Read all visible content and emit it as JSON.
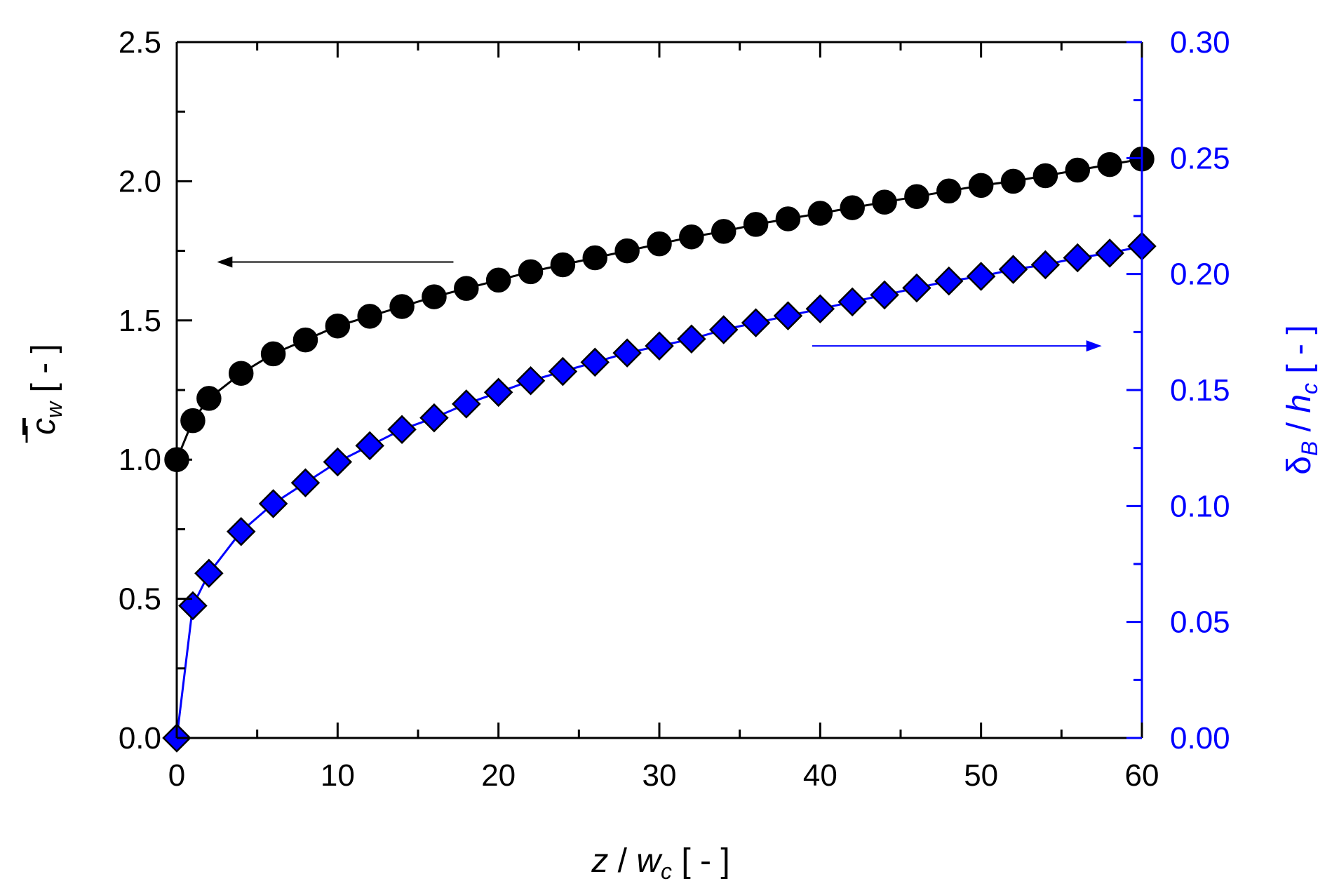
{
  "chart_data": {
    "type": "scatter",
    "title": "",
    "xlabel": "z / w_c [ - ]",
    "xlabel_parts": {
      "main": "z",
      "slash": " / ",
      "var": "w",
      "sub": "c",
      "unit": " [ - ]"
    },
    "ylabel_left": "c̄_w [ - ]",
    "ylabel_left_parts": {
      "var": "c",
      "sub": "w",
      "unit": " [ - ]"
    },
    "ylabel_right": "δ_B / h_c [ - ]",
    "ylabel_right_parts": {
      "var1": "δ",
      "sub1": "B",
      "slash": " / ",
      "var2": "h",
      "sub2": "c",
      "unit": " [ - ]"
    },
    "xlim": [
      0,
      60
    ],
    "ylim_left": [
      0,
      2.5
    ],
    "ylim_right": [
      0,
      0.3
    ],
    "x_ticks": [
      "0",
      "10",
      "20",
      "30",
      "40",
      "50",
      "60"
    ],
    "y_left_ticks": [
      "0.0",
      "0.5",
      "1.0",
      "1.5",
      "2.0",
      "2.5"
    ],
    "y_right_ticks": [
      "0.00",
      "0.05",
      "0.10",
      "0.15",
      "0.20",
      "0.25",
      "0.30"
    ],
    "grid": false,
    "colors": {
      "left_axis": "#000000",
      "right_axis": "#0000ff",
      "series_left": "#000000",
      "series_right": "#0000ff"
    },
    "series": [
      {
        "name": "c_w",
        "axis": "left",
        "marker": "circle",
        "color": "#000000",
        "x": [
          0,
          1,
          2,
          4,
          6,
          8,
          10,
          12,
          14,
          16,
          18,
          20,
          22,
          24,
          26,
          28,
          30,
          32,
          34,
          36,
          38,
          40,
          42,
          44,
          46,
          48,
          50,
          52,
          54,
          56,
          58,
          60
        ],
        "y": [
          1.0,
          1.14,
          1.22,
          1.31,
          1.38,
          1.43,
          1.48,
          1.515,
          1.55,
          1.585,
          1.615,
          1.645,
          1.675,
          1.7,
          1.725,
          1.75,
          1.775,
          1.8,
          1.82,
          1.845,
          1.865,
          1.885,
          1.905,
          1.925,
          1.945,
          1.965,
          1.985,
          2.0,
          2.02,
          2.04,
          2.06,
          2.08
        ]
      },
      {
        "name": "delta_B/h_c",
        "axis": "right",
        "marker": "diamond",
        "color": "#0000ff",
        "x": [
          0,
          1,
          2,
          4,
          6,
          8,
          10,
          12,
          14,
          16,
          18,
          20,
          22,
          24,
          26,
          28,
          30,
          32,
          34,
          36,
          38,
          40,
          42,
          44,
          46,
          48,
          50,
          52,
          54,
          56,
          58,
          60
        ],
        "y": [
          0.0,
          0.057,
          0.071,
          0.089,
          0.101,
          0.11,
          0.119,
          0.126,
          0.133,
          0.138,
          0.144,
          0.149,
          0.154,
          0.158,
          0.162,
          0.166,
          0.169,
          0.172,
          0.176,
          0.179,
          0.182,
          0.185,
          0.188,
          0.191,
          0.194,
          0.197,
          0.199,
          0.202,
          0.204,
          0.207,
          0.209,
          0.212
        ]
      }
    ],
    "annotations": [
      {
        "name": "left-arrow",
        "color": "#000000",
        "points_to": "left-axis",
        "from_x": 17.2,
        "to_x": 2.5,
        "at_y_left": 1.71
      },
      {
        "name": "right-arrow",
        "color": "#0000ff",
        "points_to": "right-axis",
        "from_x": 39.5,
        "to_x": 57.5,
        "at_y_right": 0.169
      }
    ]
  }
}
